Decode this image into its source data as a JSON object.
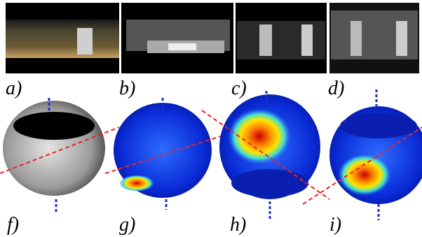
{
  "top_row": [
    {
      "label": "a)"
    },
    {
      "label": "b)"
    },
    {
      "label": "c)"
    },
    {
      "label": "d)"
    }
  ],
  "bottom_row": [
    {
      "label": "f)"
    },
    {
      "label": "g)"
    },
    {
      "label": "h)"
    },
    {
      "label": "i)"
    }
  ]
}
